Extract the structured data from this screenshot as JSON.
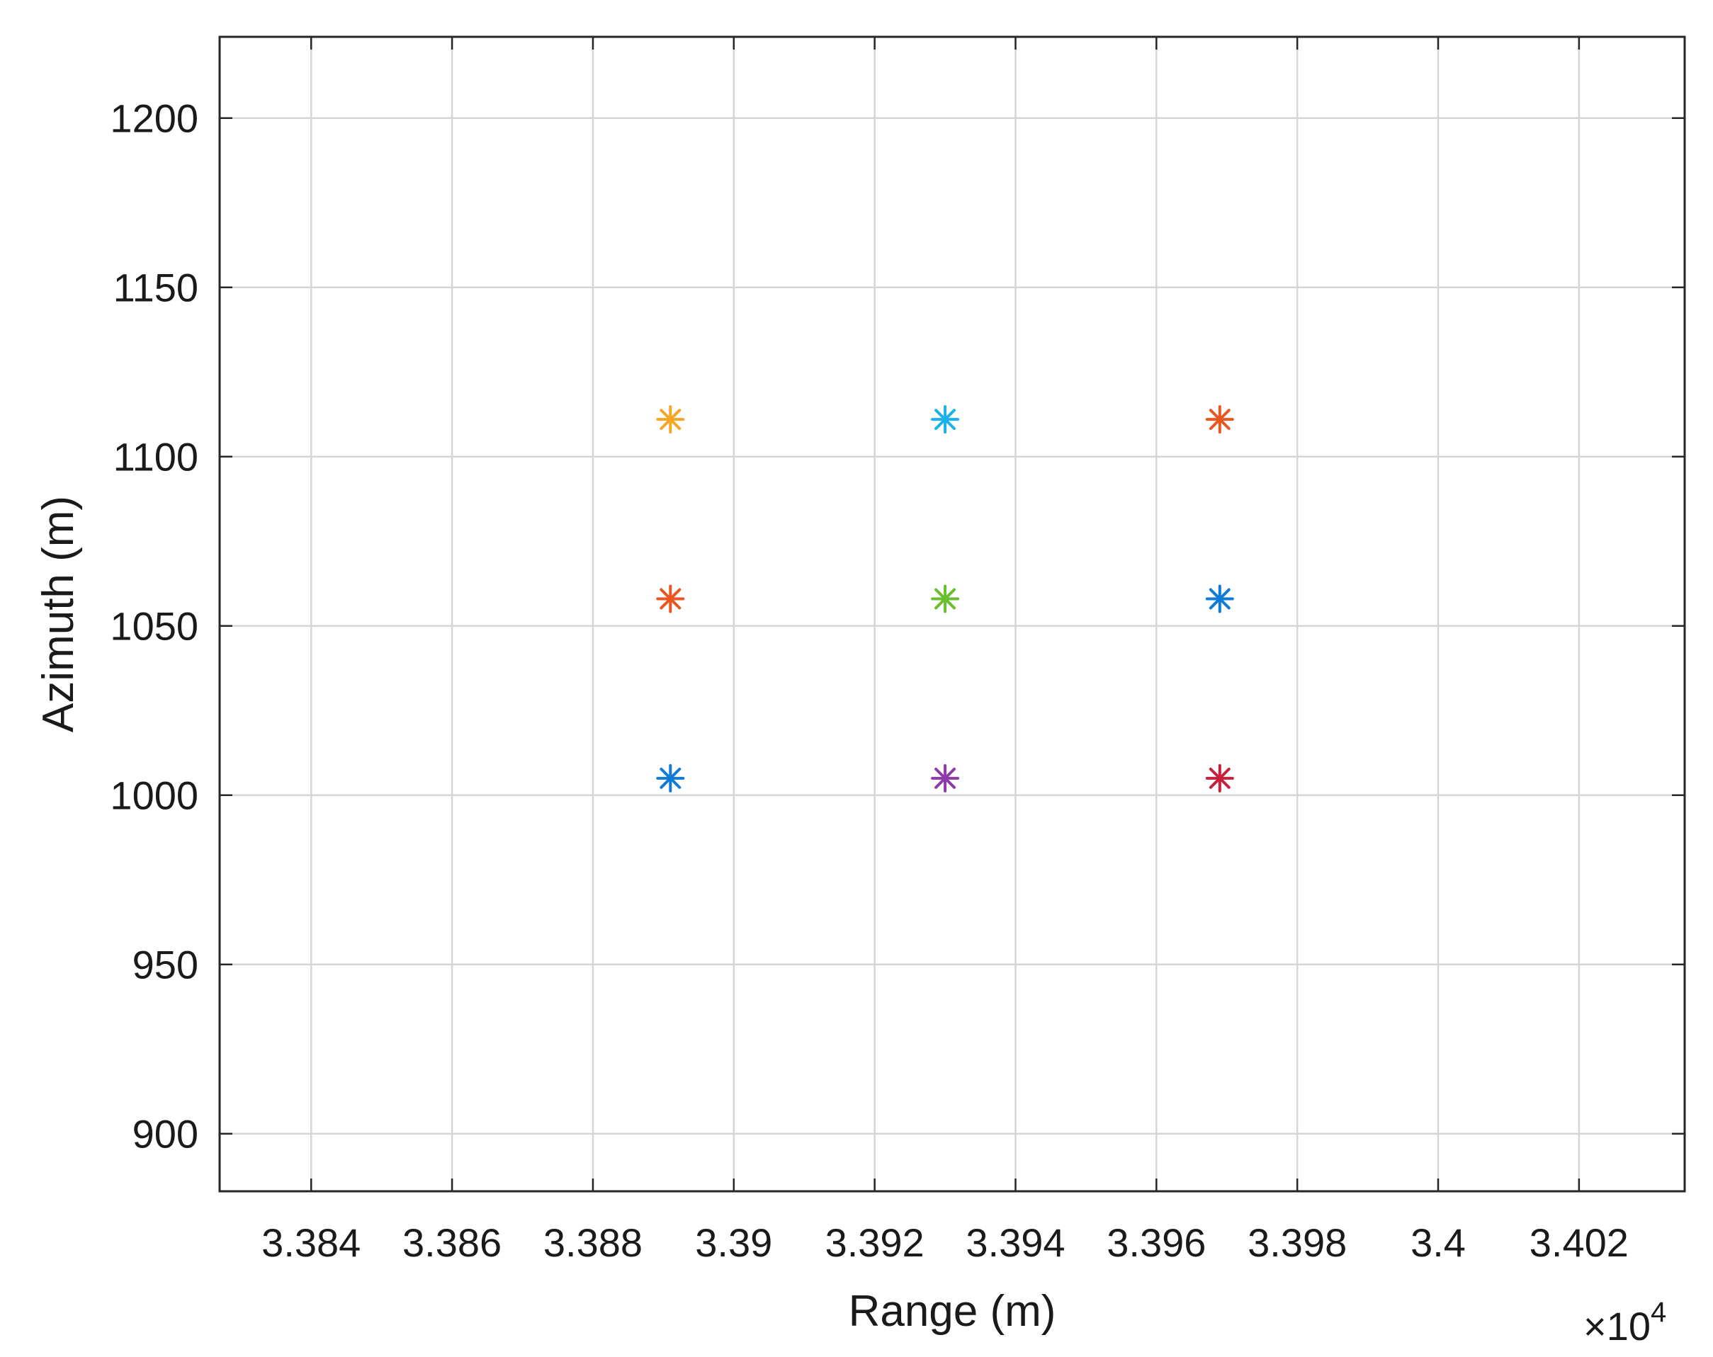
{
  "chart_data": {
    "type": "scatter",
    "title": "",
    "xlabel": "Range (m)",
    "ylabel": "Azimuth (m)",
    "x_exponent": {
      "times": "×",
      "base": "10",
      "power": "4"
    },
    "xlim": [
      3.3827,
      3.4035
    ],
    "ylim": [
      883,
      1224
    ],
    "xticks": [
      3.384,
      3.386,
      3.388,
      3.39,
      3.392,
      3.394,
      3.396,
      3.398,
      3.4,
      3.402
    ],
    "xtick_labels": [
      "3.384",
      "3.386",
      "3.388",
      "3.39",
      "3.392",
      "3.394",
      "3.396",
      "3.398",
      "3.4",
      "3.402"
    ],
    "yticks": [
      900,
      950,
      1000,
      1050,
      1100,
      1150,
      1200
    ],
    "ytick_labels": [
      "900",
      "950",
      "1000",
      "1050",
      "1100",
      "1150",
      "1200"
    ],
    "grid": true,
    "marker": "asterisk",
    "points": [
      {
        "x": 3.3891,
        "y": 1111,
        "color": "#f5a623"
      },
      {
        "x": 3.393,
        "y": 1111,
        "color": "#1ab2e8"
      },
      {
        "x": 3.3969,
        "y": 1111,
        "color": "#e8571f"
      },
      {
        "x": 3.3891,
        "y": 1058,
        "color": "#e8571f"
      },
      {
        "x": 3.393,
        "y": 1058,
        "color": "#6abf2e"
      },
      {
        "x": 3.3969,
        "y": 1058,
        "color": "#0f7bd6"
      },
      {
        "x": 3.3891,
        "y": 1005,
        "color": "#0f7bd6"
      },
      {
        "x": 3.393,
        "y": 1005,
        "color": "#8e3aa8"
      },
      {
        "x": 3.3969,
        "y": 1005,
        "color": "#c8203a"
      }
    ]
  }
}
